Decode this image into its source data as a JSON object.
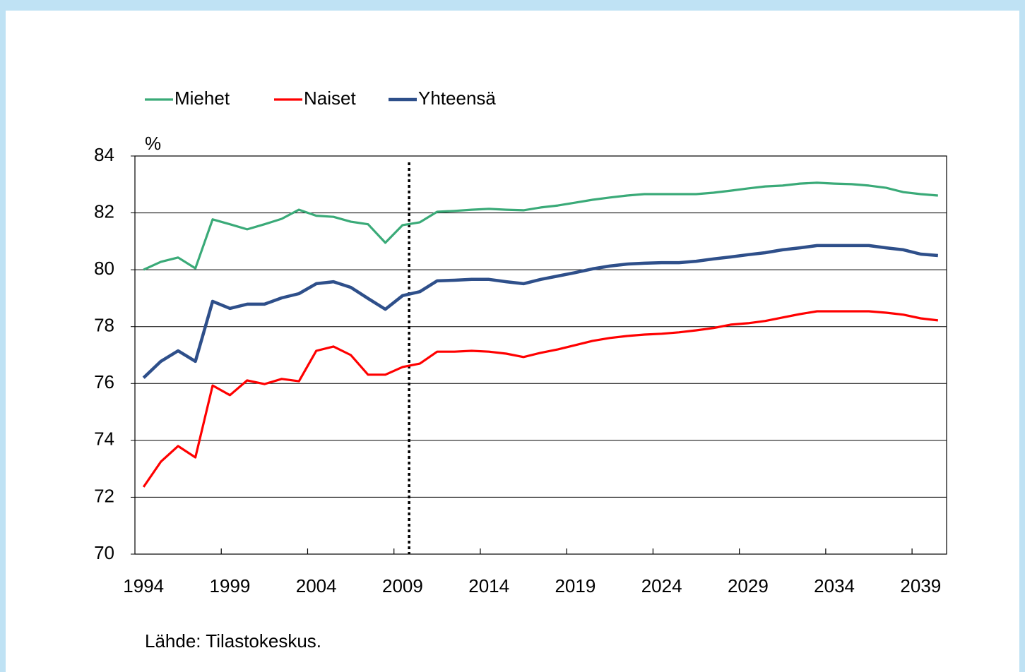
{
  "chart_data": {
    "type": "line",
    "y_label": "%",
    "source": "Lähde: Tilastokeskus.",
    "categories": [
      "1994",
      null,
      null,
      null,
      null,
      "1999",
      null,
      null,
      null,
      null,
      "2004",
      null,
      null,
      null,
      null,
      "2009",
      null,
      null,
      null,
      null,
      "2014",
      null,
      null,
      null,
      null,
      "2019",
      null,
      null,
      null,
      null,
      "2024",
      null,
      null,
      null,
      null,
      "2029",
      null,
      null,
      null,
      null,
      "2034",
      null,
      null,
      null,
      null,
      "2039",
      null
    ],
    "series": [
      {
        "name": "Miehet",
        "color": "#3aaa78",
        "values": [
          80.0,
          80.28,
          80.43,
          80.05,
          81.77,
          81.6,
          81.42,
          81.6,
          81.79,
          82.11,
          81.9,
          81.86,
          81.69,
          81.6,
          80.95,
          81.57,
          81.67,
          82.04,
          82.07,
          82.11,
          82.14,
          82.11,
          82.09,
          82.19,
          82.26,
          82.36,
          82.46,
          82.54,
          82.61,
          82.66,
          82.66,
          82.66,
          82.66,
          82.71,
          82.78,
          82.86,
          82.93,
          82.96,
          83.03,
          83.06,
          83.03,
          83.01,
          82.96,
          82.88,
          82.73,
          82.66,
          82.61
        ]
      },
      {
        "name": "Naiset",
        "color": "#ff0000",
        "values": [
          72.36,
          73.25,
          73.8,
          73.4,
          75.93,
          75.59,
          76.11,
          75.98,
          76.16,
          76.08,
          77.15,
          77.3,
          77.0,
          76.31,
          76.31,
          76.58,
          76.7,
          77.12,
          77.12,
          77.15,
          77.12,
          77.05,
          76.93,
          77.08,
          77.2,
          77.35,
          77.5,
          77.6,
          77.67,
          77.72,
          77.75,
          77.8,
          77.87,
          77.95,
          78.07,
          78.12,
          78.2,
          78.32,
          78.44,
          78.54,
          78.54,
          78.54,
          78.54,
          78.49,
          78.42,
          78.29,
          78.22
        ]
      },
      {
        "name": "Yhteensä",
        "color": "#2e4f8a",
        "values": [
          76.2,
          76.78,
          77.15,
          76.78,
          78.89,
          78.64,
          78.79,
          78.79,
          79.01,
          79.16,
          79.51,
          79.58,
          79.38,
          78.99,
          78.61,
          79.09,
          79.23,
          79.61,
          79.63,
          79.66,
          79.66,
          79.58,
          79.51,
          79.66,
          79.78,
          79.9,
          80.03,
          80.13,
          80.2,
          80.23,
          80.25,
          80.25,
          80.3,
          80.38,
          80.45,
          80.53,
          80.6,
          80.7,
          80.77,
          80.85,
          80.85,
          80.85,
          80.85,
          80.77,
          80.7,
          80.55,
          80.5
        ]
      }
    ],
    "ylim": [
      70,
      84
    ],
    "yticks": [
      70,
      72,
      74,
      76,
      78,
      80,
      82,
      84
    ],
    "grid": true,
    "legend": "top"
  }
}
